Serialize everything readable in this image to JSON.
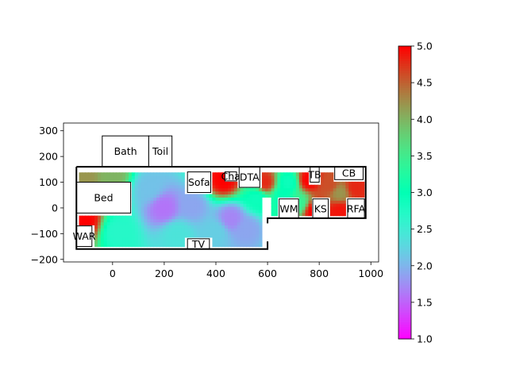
{
  "chart_data": {
    "type": "heatmap",
    "title": "",
    "xlabel": "",
    "ylabel": "",
    "xlim": [
      -190,
      1030
    ],
    "ylim": [
      -210,
      330
    ],
    "xticks": [
      0,
      200,
      400,
      600,
      800,
      1000
    ],
    "yticks": [
      -200,
      -100,
      0,
      100,
      200,
      300
    ],
    "colorbar": {
      "min": 1.0,
      "max": 5.0,
      "colormap": "rainbow",
      "ticks": [
        "1.0",
        "1.5",
        "2.0",
        "2.5",
        "3.0",
        "3.5",
        "4.0",
        "4.5",
        "5.0"
      ]
    },
    "rooms": [
      {
        "label": "Bath",
        "x0": -40,
        "y0": 160,
        "x1": 140,
        "y1": 280
      },
      {
        "label": "Toil",
        "x0": 140,
        "y0": 160,
        "x1": 230,
        "y1": 280
      },
      {
        "label": "Bed",
        "x0": -140,
        "y0": -20,
        "x1": 70,
        "y1": 100
      },
      {
        "label": "Sofa",
        "x0": 290,
        "y0": 60,
        "x1": 380,
        "y1": 140
      },
      {
        "label": "Cha",
        "x0": 435,
        "y0": 105,
        "x1": 480,
        "y1": 140
      },
      {
        "label": "DTA",
        "x0": 490,
        "y0": 80,
        "x1": 570,
        "y1": 160
      },
      {
        "label": "TB",
        "x0": 765,
        "y0": 100,
        "x1": 800,
        "y1": 160
      },
      {
        "label": "CB",
        "x0": 860,
        "y0": 110,
        "x1": 970,
        "y1": 160
      },
      {
        "label": "WM",
        "x0": 645,
        "y0": -40,
        "x1": 720,
        "y1": 35
      },
      {
        "label": "KS",
        "x0": 775,
        "y0": -40,
        "x1": 835,
        "y1": 35
      },
      {
        "label": "RFA",
        "x0": 910,
        "y0": -40,
        "x1": 975,
        "y1": 35
      },
      {
        "label": "WAR",
        "x0": -140,
        "y0": -150,
        "x1": -80,
        "y1": -70
      },
      {
        "label": "TV",
        "x0": 290,
        "y0": -160,
        "x1": 375,
        "y1": -120
      }
    ],
    "walls": [
      [
        [
          -140,
          160
        ],
        [
          -140,
          -160
        ],
        [
          600,
          -160
        ],
        [
          600,
          -130
        ]
      ],
      [
        [
          -140,
          160
        ],
        [
          980,
          160
        ],
        [
          980,
          -40
        ],
        [
          600,
          -40
        ],
        [
          600,
          -60
        ]
      ]
    ],
    "heat_blobs": [
      {
        "x": 200,
        "y": 0,
        "v": 1.6
      },
      {
        "x": 140,
        "y": 80,
        "v": 2.1
      },
      {
        "x": 310,
        "y": 10,
        "v": 1.9
      },
      {
        "x": 460,
        "y": -40,
        "v": 1.7
      },
      {
        "x": 520,
        "y": -80,
        "v": 1.9
      },
      {
        "x": 400,
        "y": -90,
        "v": 2.2
      },
      {
        "x": 20,
        "y": -90,
        "v": 2.7
      },
      {
        "x": 250,
        "y": -100,
        "v": 2.4
      },
      {
        "x": 560,
        "y": 40,
        "v": 2.9
      },
      {
        "x": 680,
        "y": 100,
        "v": 2.9
      },
      {
        "x": 660,
        "y": 50,
        "v": 3.0
      },
      {
        "x": 720,
        "y": 20,
        "v": 3.4
      },
      {
        "x": 880,
        "y": 60,
        "v": 4.2
      },
      {
        "x": 840,
        "y": 90,
        "v": 4.6
      },
      {
        "x": 940,
        "y": 80,
        "v": 4.8
      },
      {
        "x": -110,
        "y": 120,
        "v": 4.2
      },
      {
        "x": 0,
        "y": 125,
        "v": 4.0
      },
      {
        "x": -110,
        "y": -50,
        "v": 5.0
      },
      {
        "x": 430,
        "y": 110,
        "v": 5.0
      },
      {
        "x": 590,
        "y": 100,
        "v": 4.8
      },
      {
        "x": 760,
        "y": 110,
        "v": 5.0
      },
      {
        "x": 780,
        "y": -10,
        "v": 5.0
      },
      {
        "x": 880,
        "y": -10,
        "v": 4.9
      }
    ]
  }
}
